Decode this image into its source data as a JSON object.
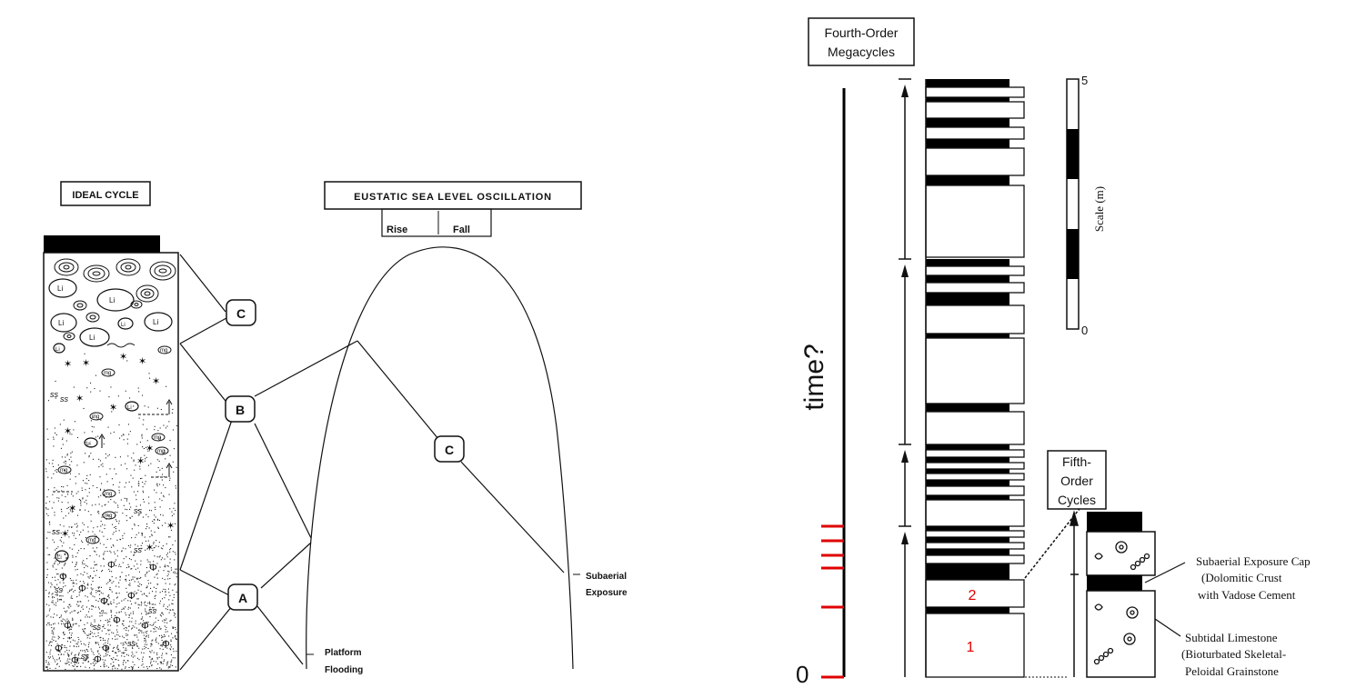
{
  "left_panel": {
    "ideal_cycle_label": "IDEAL CYCLE",
    "eustatic_label": "EUSTATIC SEA LEVEL OSCILLATION",
    "rise_label": "Rise",
    "fall_label": "Fall",
    "node_a": "A",
    "node_b": "B",
    "node_c_upper": "C",
    "node_c_curve": "C",
    "subaerial_line1": "Subaerial",
    "subaerial_line2": "Exposure",
    "platform_line1": "Platform",
    "platform_line2": "Flooding",
    "li_glyph": "Li",
    "mg_glyph": "mg",
    "ss_glyph": "ss",
    "phi_glyph": "Φ",
    "star_glyph": "✶"
  },
  "right_panel": {
    "megacycles_line1": "Fourth-Order",
    "megacycles_line2": "Megacycles",
    "time_label": "time?",
    "zero_label": "0",
    "scale_label": "Scale (m)",
    "scale_max": "5",
    "scale_min": "0",
    "cycle_1": "1",
    "cycle_2": "2",
    "fifth_line1": "Fifth-",
    "fifth_line2": "Order",
    "fifth_line3": "Cycles",
    "cap_line1": "Subaerial Exposure Cap",
    "cap_line2": "(Dolomitic Crust",
    "cap_line3": "with Vadose Cement",
    "sub_line1": "Subtidal Limestone",
    "sub_line2": "(Bioturbated Skeletal-",
    "sub_line3": "Peloidal Grainstone",
    "accent_red": "#e00000"
  }
}
